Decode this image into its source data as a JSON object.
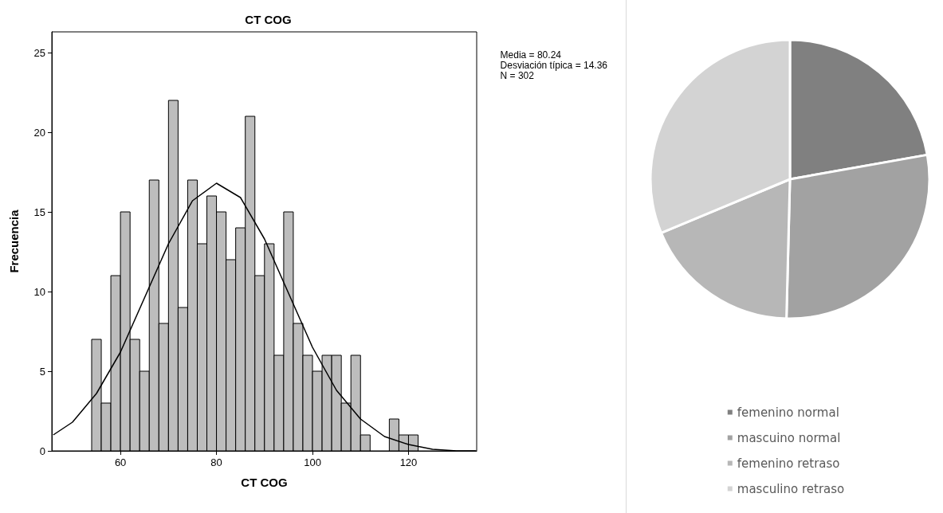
{
  "chart_data": [
    {
      "type": "histogram",
      "title": "CT COG",
      "xlabel": "CT COG",
      "ylabel": "Frecuencia",
      "color": "#bdbdbd",
      "bins": [
        54,
        56,
        58,
        60,
        62,
        64,
        66,
        68,
        70,
        72,
        74,
        76,
        78,
        80,
        82,
        84,
        86,
        88,
        90,
        92,
        94,
        96,
        98,
        100,
        102,
        104,
        106,
        108,
        110,
        112,
        114,
        116,
        118,
        120,
        122
      ],
      "values": [
        7,
        3,
        11,
        15,
        7,
        5,
        17,
        8,
        22,
        9,
        17,
        13,
        16,
        15,
        12,
        14,
        21,
        11,
        13,
        6,
        15,
        8,
        6,
        5,
        6,
        6,
        3,
        6,
        1,
        0,
        0,
        2,
        1,
        1
      ],
      "series": [
        {
          "type": "line",
          "color": "#000000",
          "x": [
            46,
            50,
            55,
            60,
            65,
            70,
            75,
            80,
            85,
            90,
            95,
            100,
            105,
            110,
            115,
            120,
            125,
            130,
            134
          ],
          "values": [
            1.0,
            1.8,
            3.6,
            6.2,
            9.6,
            13.0,
            15.7,
            16.8,
            15.9,
            13.3,
            9.9,
            6.5,
            3.8,
            2.0,
            0.9,
            0.4,
            0.1,
            0.0,
            0.0
          ]
        }
      ],
      "marker": "none",
      "line_style": "solid",
      "xlim": [
        45.7,
        134.2
      ],
      "xticks": [
        60,
        80,
        100,
        120
      ],
      "ylim": [
        0,
        26.3
      ],
      "yticks": [
        0,
        5,
        10,
        15,
        20,
        25
      ],
      "grid": false,
      "annotations": [
        "Media = 80.24",
        "Desviación típica = 14.36",
        "N = 302"
      ]
    },
    {
      "type": "pie",
      "categories": [
        "femenino normal",
        "mascuino normal",
        "femenino retraso",
        "masculino retraso"
      ],
      "values": [
        22.2,
        28.2,
        18.3,
        31.3
      ],
      "colors": [
        "#808080",
        "#a2a2a2",
        "#b7b7b7",
        "#d3d3d3"
      ],
      "legend": "bottom"
    }
  ]
}
